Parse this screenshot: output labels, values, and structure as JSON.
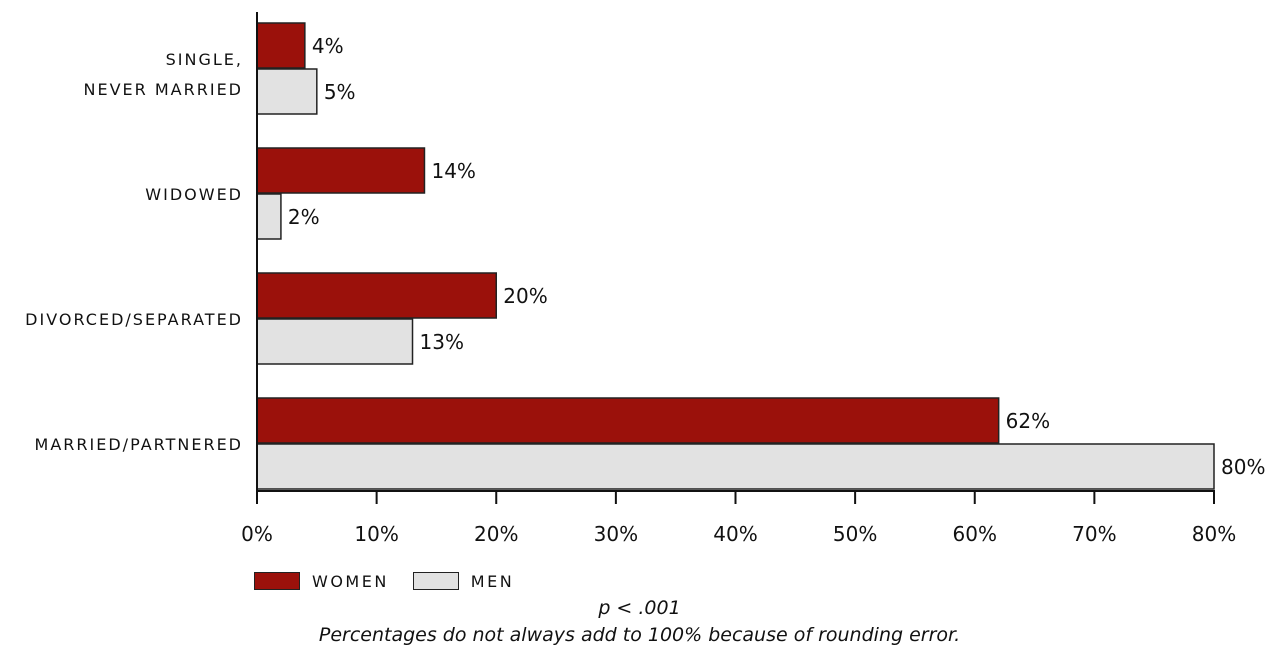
{
  "chart_data": {
    "type": "bar",
    "orientation": "horizontal",
    "categories": [
      "SINGLE, NEVER MARRIED",
      "WIDOWED",
      "DIVORCED/SEPARATED",
      "MARRIED/PARTNERED"
    ],
    "series": [
      {
        "name": "WOMEN",
        "values": [
          4,
          14,
          20,
          62
        ],
        "color": "#9b110b"
      },
      {
        "name": "MEN",
        "values": [
          5,
          2,
          13,
          80
        ],
        "color": "#e2e2e2"
      }
    ],
    "data_labels": {
      "WOMEN": [
        "4%",
        "14%",
        "20%",
        "62%"
      ],
      "MEN": [
        "5%",
        "2%",
        "13%",
        "80%"
      ]
    },
    "xlim": [
      0,
      80
    ],
    "xticks": [
      "0%",
      "10%",
      "20%",
      "30%",
      "40%",
      "50%",
      "60%",
      "70%",
      "80%"
    ],
    "grid": false,
    "legend": "bottom-left",
    "annotations": [
      "p < .001",
      "Percentages do not always add to 100% because of rounding error."
    ]
  }
}
